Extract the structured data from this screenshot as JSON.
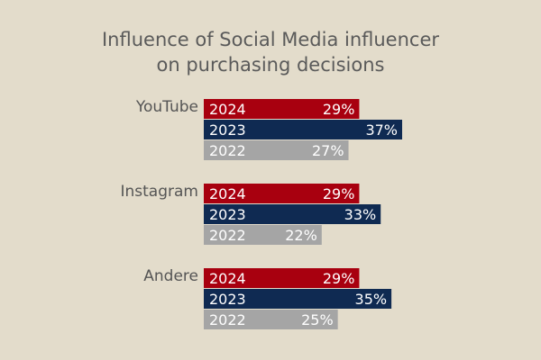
{
  "chart_data": {
    "type": "bar",
    "orientation": "horizontal",
    "title_lines": [
      "Influence of Social Media influencer",
      "on purchasing decisions"
    ],
    "categories": [
      "YouTube",
      "Instagram",
      "Andere"
    ],
    "series": [
      {
        "name": "2024",
        "color": "#a8000f",
        "values": [
          29,
          29,
          29
        ]
      },
      {
        "name": "2023",
        "color": "#0f2a52",
        "values": [
          37,
          33,
          35
        ]
      },
      {
        "name": "2022",
        "color": "#a5a5a5",
        "values": [
          27,
          22,
          25
        ]
      }
    ],
    "value_suffix": "%",
    "xlim": [
      0,
      37
    ],
    "legend": "none",
    "grid": false
  }
}
